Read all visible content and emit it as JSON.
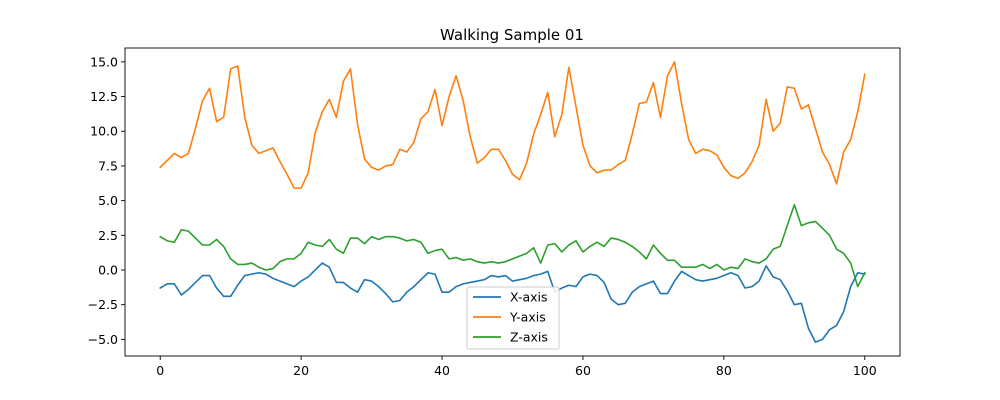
{
  "chart_data": {
    "type": "line",
    "title": "Walking Sample 01",
    "xlabel": "",
    "ylabel": "",
    "xlim": [
      -5,
      105
    ],
    "ylim": [
      -6.2,
      16.0
    ],
    "x_ticks": [
      0,
      20,
      40,
      60,
      80,
      100
    ],
    "x_tick_labels": [
      "0",
      "20",
      "40",
      "60",
      "80",
      "100"
    ],
    "y_ticks": [
      -5.0,
      -2.5,
      0.0,
      2.5,
      5.0,
      7.5,
      10.0,
      12.5,
      15.0
    ],
    "y_tick_labels": [
      "−5.0",
      "−2.5",
      "0.0",
      "2.5",
      "5.0",
      "7.5",
      "10.0",
      "12.5",
      "15.0"
    ],
    "grid": false,
    "legend": "lower-center",
    "x": [
      0,
      1,
      2,
      3,
      4,
      5,
      6,
      7,
      8,
      9,
      10,
      11,
      12,
      13,
      14,
      15,
      16,
      17,
      18,
      19,
      20,
      21,
      22,
      23,
      24,
      25,
      26,
      27,
      28,
      29,
      30,
      31,
      32,
      33,
      34,
      35,
      36,
      37,
      38,
      39,
      40,
      41,
      42,
      43,
      44,
      45,
      46,
      47,
      48,
      49,
      50,
      51,
      52,
      53,
      54,
      55,
      56,
      57,
      58,
      59,
      60,
      61,
      62,
      63,
      64,
      65,
      66,
      67,
      68,
      69,
      70,
      71,
      72,
      73,
      74,
      75,
      76,
      77,
      78,
      79,
      80,
      81,
      82,
      83,
      84,
      85,
      86,
      87,
      88,
      89,
      90,
      91,
      92,
      93,
      94,
      95,
      96,
      97,
      98,
      99,
      100
    ],
    "series": [
      {
        "name": "X-axis",
        "color": "#1f77b4",
        "values": [
          -1.3,
          -1.0,
          -1.0,
          -1.8,
          -1.4,
          -0.9,
          -0.4,
          -0.4,
          -1.3,
          -1.9,
          -1.9,
          -1.1,
          -0.4,
          -0.3,
          -0.2,
          -0.3,
          -0.6,
          -0.8,
          -1.0,
          -1.2,
          -0.8,
          -0.5,
          0.0,
          0.5,
          0.2,
          -0.9,
          -0.9,
          -1.3,
          -1.6,
          -0.7,
          -0.8,
          -1.2,
          -1.7,
          -2.3,
          -2.2,
          -1.6,
          -1.2,
          -0.7,
          -0.2,
          -0.3,
          -1.6,
          -1.6,
          -1.2,
          -1.0,
          -0.9,
          -0.8,
          -0.7,
          -0.4,
          -0.5,
          -0.4,
          -0.8,
          -0.7,
          -0.6,
          -0.4,
          -0.3,
          -0.1,
          -1.6,
          -1.3,
          -1.1,
          -1.2,
          -0.5,
          -0.3,
          -0.4,
          -0.9,
          -2.1,
          -2.5,
          -2.4,
          -1.6,
          -1.2,
          -1.0,
          -0.8,
          -1.7,
          -1.7,
          -0.8,
          -0.1,
          -0.4,
          -0.7,
          -0.8,
          -0.7,
          -0.6,
          -0.4,
          -0.2,
          -0.4,
          -1.3,
          -1.2,
          -0.8,
          0.3,
          -0.5,
          -0.7,
          -1.5,
          -2.5,
          -2.4,
          -4.2,
          -5.2,
          -5.0,
          -4.3,
          -4.0,
          -3.0,
          -1.2,
          -0.2,
          -0.3
        ]
      },
      {
        "name": "Y-axis",
        "color": "#ff7f0e",
        "values": [
          7.4,
          7.9,
          8.4,
          8.1,
          8.4,
          10.2,
          12.2,
          13.1,
          10.7,
          11.0,
          14.5,
          14.7,
          11.0,
          9.0,
          8.4,
          8.6,
          8.8,
          7.8,
          6.9,
          5.9,
          5.9,
          7.0,
          9.9,
          11.4,
          12.3,
          11.0,
          13.6,
          14.5,
          10.5,
          8.0,
          7.4,
          7.2,
          7.5,
          7.6,
          8.7,
          8.5,
          9.2,
          10.9,
          11.4,
          13.0,
          10.4,
          12.5,
          14.0,
          12.2,
          9.6,
          7.7,
          8.1,
          8.7,
          8.7,
          7.9,
          6.9,
          6.5,
          7.7,
          9.8,
          11.2,
          12.8,
          9.6,
          11.2,
          14.6,
          11.8,
          9.0,
          7.5,
          7.0,
          7.2,
          7.2,
          7.6,
          7.9,
          9.8,
          12.0,
          12.1,
          13.5,
          11.0,
          14.0,
          15.0,
          12.0,
          9.4,
          8.4,
          8.7,
          8.6,
          8.3,
          7.4,
          6.8,
          6.6,
          7.0,
          7.8,
          9.0,
          12.3,
          10.0,
          10.6,
          13.2,
          13.1,
          11.6,
          11.9,
          10.2,
          8.5,
          7.6,
          6.2,
          8.5,
          9.4,
          11.4,
          14.1
        ]
      },
      {
        "name": "Z-axis",
        "color": "#2ca02c",
        "values": [
          2.4,
          2.1,
          2.0,
          2.9,
          2.8,
          2.3,
          1.8,
          1.8,
          2.2,
          1.7,
          0.8,
          0.4,
          0.4,
          0.5,
          0.2,
          0.0,
          0.1,
          0.6,
          0.8,
          0.8,
          1.2,
          2.0,
          1.8,
          1.7,
          2.2,
          1.5,
          1.2,
          2.3,
          2.3,
          1.9,
          2.4,
          2.2,
          2.4,
          2.4,
          2.3,
          2.1,
          2.2,
          2.0,
          1.2,
          1.4,
          1.5,
          0.8,
          0.9,
          0.7,
          0.8,
          0.6,
          0.5,
          0.6,
          0.5,
          0.6,
          0.8,
          1.0,
          1.2,
          1.6,
          0.5,
          1.8,
          1.9,
          1.3,
          1.8,
          2.1,
          1.3,
          1.7,
          2.0,
          1.7,
          2.3,
          2.2,
          2.0,
          1.7,
          1.3,
          0.8,
          1.8,
          1.2,
          0.7,
          0.7,
          0.2,
          0.2,
          0.2,
          0.4,
          0.1,
          0.4,
          0.0,
          0.2,
          0.1,
          0.8,
          0.6,
          0.5,
          0.8,
          1.5,
          1.7,
          3.2,
          4.7,
          3.2,
          3.4,
          3.5,
          3.0,
          2.5,
          1.5,
          1.2,
          0.5,
          -1.2,
          -0.2
        ]
      }
    ]
  }
}
